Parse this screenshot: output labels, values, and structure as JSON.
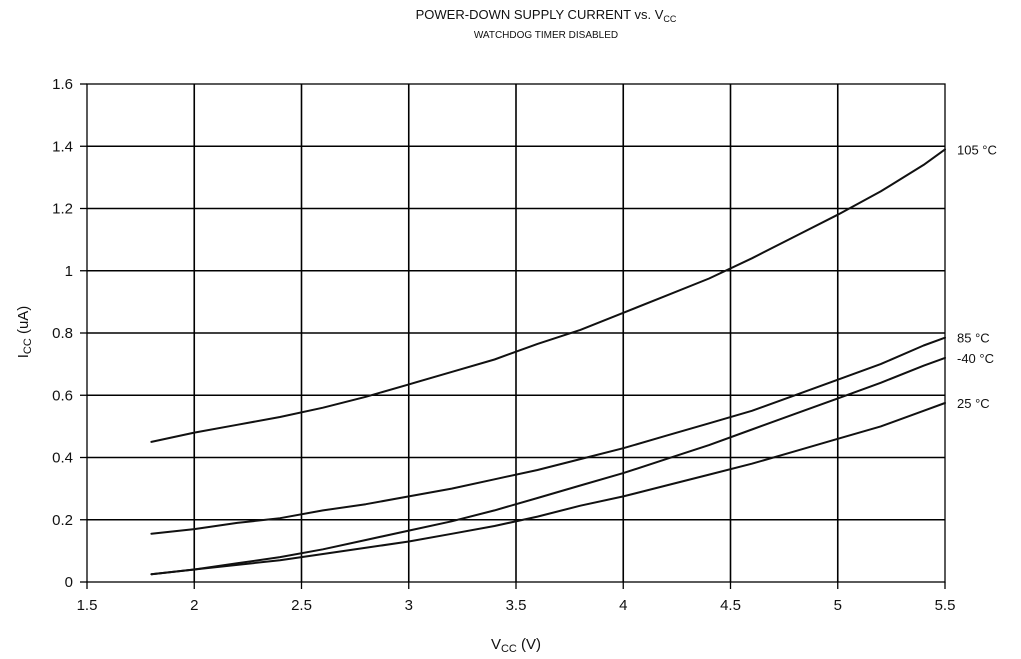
{
  "chart_data": {
    "type": "line",
    "title": "POWER-DOWN SUPPLY CURRENT vs. V",
    "title_sub": "CC",
    "subtitle": "WATCHDOG TIMER DISABLED",
    "xlabel": "V",
    "xlabel_sub": "CC",
    "xlabel_unit": " (V)",
    "ylabel": "I",
    "ylabel_sub": "CC",
    "ylabel_unit": " (uA)",
    "xlim": [
      1.5,
      5.5
    ],
    "ylim": [
      0,
      1.6
    ],
    "xticks": [
      1.5,
      2,
      2.5,
      3,
      3.5,
      4,
      4.5,
      5,
      5.5
    ],
    "xtick_labels": [
      "1.5",
      "2",
      "2.5",
      "3",
      "3.5",
      "4",
      "4.5",
      "5",
      "5.5"
    ],
    "yticks": [
      0,
      0.2,
      0.4,
      0.6,
      0.8,
      1,
      1.2,
      1.4,
      1.6
    ],
    "ytick_labels": [
      "0",
      "0.2",
      "0.4",
      "0.6",
      "0.8",
      "1",
      "1.2",
      "1.4",
      "1.6"
    ],
    "grid": true,
    "x": [
      1.8,
      2.0,
      2.2,
      2.4,
      2.6,
      2.8,
      3.0,
      3.2,
      3.4,
      3.6,
      3.8,
      4.0,
      4.2,
      4.4,
      4.6,
      4.8,
      5.0,
      5.2,
      5.4,
      5.5
    ],
    "series": [
      {
        "name": "105 °C",
        "values": [
          0.45,
          0.48,
          0.505,
          0.53,
          0.56,
          0.595,
          0.635,
          0.675,
          0.715,
          0.765,
          0.81,
          0.865,
          0.92,
          0.975,
          1.04,
          1.11,
          1.18,
          1.255,
          1.34,
          1.39
        ]
      },
      {
        "name": "85 °C",
        "values": [
          0.155,
          0.17,
          0.19,
          0.205,
          0.23,
          0.25,
          0.275,
          0.3,
          0.33,
          0.36,
          0.395,
          0.43,
          0.47,
          0.51,
          0.55,
          0.6,
          0.65,
          0.7,
          0.76,
          0.785
        ]
      },
      {
        "name": "-40 °C",
        "values": [
          0.025,
          0.04,
          0.06,
          0.08,
          0.105,
          0.135,
          0.165,
          0.195,
          0.23,
          0.27,
          0.31,
          0.35,
          0.395,
          0.44,
          0.49,
          0.54,
          0.59,
          0.64,
          0.695,
          0.72
        ]
      },
      {
        "name": "25 °C",
        "values": [
          0.025,
          0.04,
          0.055,
          0.07,
          0.09,
          0.11,
          0.13,
          0.155,
          0.18,
          0.21,
          0.245,
          0.275,
          0.31,
          0.345,
          0.38,
          0.42,
          0.46,
          0.5,
          0.55,
          0.575
        ]
      }
    ]
  }
}
